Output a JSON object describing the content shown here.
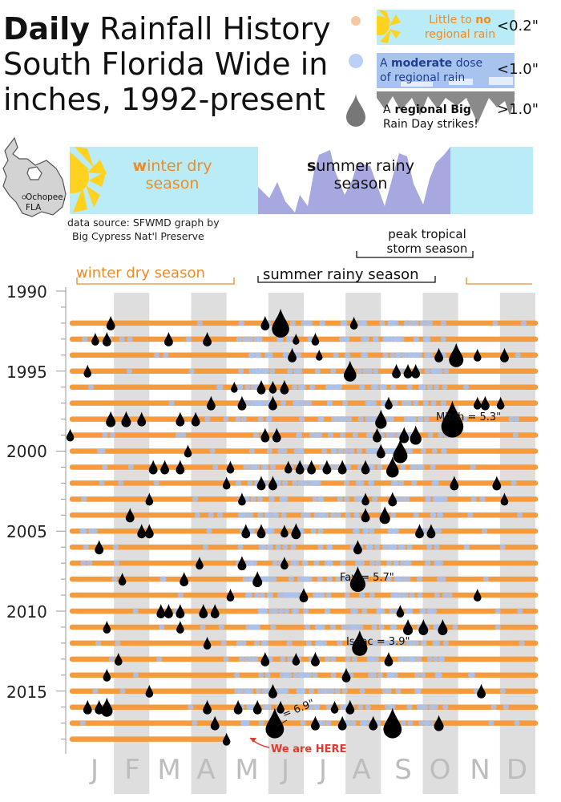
{
  "title": {
    "bold": "Daily",
    "rest": " Rainfall History South Florida Wide in inches, 1992-present"
  },
  "legend": [
    {
      "pre": "Little to ",
      "bold": "no",
      "post": " regional rain",
      "threshold": "<0.2\"",
      "color": "#f7c8a0",
      "text_color": "#f08a24"
    },
    {
      "pre": "A ",
      "bold": "moderate",
      "post": " dose of regional rain",
      "threshold": "<1.0\"",
      "color": "#bcd0f5",
      "text_color": "#1f3f8f"
    },
    {
      "pre": "A",
      "bold": " regional Big",
      "post": " Rain Day strikes!",
      "threshold": ">1.0\"",
      "color": "#777777",
      "text_color": "#111"
    }
  ],
  "map": {
    "label": "Ochopee, FLA"
  },
  "season_banner": {
    "winter_bold": "w",
    "winter_rest": "inter dry season",
    "summer_bold": "s",
    "summer_rest": "ummer rainy season"
  },
  "source": {
    "line1": "data source: SFWMD  graph by",
    "line2": "Big Cypress Nat'l Preserve"
  },
  "chart_data": {
    "type": "scatter",
    "title": "Daily Rainfall History South Florida Wide in inches, 1992-present",
    "x_tick_labels": [
      "J",
      "F",
      "M",
      "A",
      "M",
      "J",
      "J",
      "A",
      "S",
      "O",
      "N",
      "D"
    ],
    "y_tick_labels": [
      "1990",
      "1995",
      "2000",
      "2005",
      "2010",
      "2015"
    ],
    "y_range": [
      1990,
      2018.5
    ],
    "shaded_months": [
      "F",
      "A",
      "J",
      "A",
      "O",
      "D"
    ],
    "colors": {
      "dry": "#f59b3d",
      "moderate": "#a9c3ef",
      "big": "#000000",
      "grid_band": "#dedede"
    },
    "season_brackets": [
      {
        "label": "winter dry season",
        "color": "#f08a24"
      },
      {
        "label": "summer rainy season",
        "color": "#111111"
      },
      {
        "label": "peak tropical storm season",
        "color": "#111111"
      }
    ],
    "annotations": [
      {
        "text": "Mitch = 5.3\"",
        "year": 1998,
        "month": 10.85
      },
      {
        "text": "Fay = 5.7\"",
        "year": 2008,
        "month": 8.4
      },
      {
        "text": "Isaac = 3.9\"",
        "year": 2012,
        "month": 8.45
      },
      {
        "text": "= 6.9\"",
        "year": 2017,
        "month": 6.25
      },
      {
        "text": "We are HERE",
        "year": 2018,
        "month": 5.0
      }
    ],
    "series": [
      {
        "name": "Big Rain Day (>1.0\")",
        "points": [
          {
            "year": 1992,
            "month": 2.0,
            "size": 0.9
          },
          {
            "year": 1992,
            "month": 6.0,
            "size": 0.9
          },
          {
            "year": 1992,
            "month": 6.4,
            "size": 1.8
          },
          {
            "year": 1992,
            "month": 8.3,
            "size": 0.8
          },
          {
            "year": 1993,
            "month": 1.6,
            "size": 0.8
          },
          {
            "year": 1993,
            "month": 1.9,
            "size": 0.9
          },
          {
            "year": 1993,
            "month": 3.5,
            "size": 0.9
          },
          {
            "year": 1993,
            "month": 4.5,
            "size": 0.9
          },
          {
            "year": 1993,
            "month": 6.8,
            "size": 0.7
          },
          {
            "year": 1993,
            "month": 7.3,
            "size": 0.8
          },
          {
            "year": 1994,
            "month": 6.7,
            "size": 0.9
          },
          {
            "year": 1994,
            "month": 7.4,
            "size": 0.7
          },
          {
            "year": 1994,
            "month": 10.5,
            "size": 0.9
          },
          {
            "year": 1994,
            "month": 10.95,
            "size": 1.5
          },
          {
            "year": 1994,
            "month": 11.5,
            "size": 0.8
          },
          {
            "year": 1994,
            "month": 12.2,
            "size": 0.9
          },
          {
            "year": 1995,
            "month": 1.4,
            "size": 0.8
          },
          {
            "year": 1995,
            "month": 8.2,
            "size": 1.3
          },
          {
            "year": 1995,
            "month": 9.4,
            "size": 0.9
          },
          {
            "year": 1995,
            "month": 9.7,
            "size": 0.9
          },
          {
            "year": 1995,
            "month": 9.9,
            "size": 0.9
          },
          {
            "year": 1996,
            "month": 5.2,
            "size": 0.7
          },
          {
            "year": 1996,
            "month": 5.9,
            "size": 0.9
          },
          {
            "year": 1996,
            "month": 6.2,
            "size": 0.8
          },
          {
            "year": 1996,
            "month": 6.5,
            "size": 0.9
          },
          {
            "year": 1997,
            "month": 4.6,
            "size": 0.9
          },
          {
            "year": 1997,
            "month": 5.4,
            "size": 0.9
          },
          {
            "year": 1997,
            "month": 6.2,
            "size": 0.9
          },
          {
            "year": 1997,
            "month": 9.2,
            "size": 0.8
          },
          {
            "year": 1997,
            "month": 11.5,
            "size": 0.8
          },
          {
            "year": 1997,
            "month": 11.7,
            "size": 0.9
          },
          {
            "year": 1997,
            "month": 12.1,
            "size": 0.8
          },
          {
            "year": 1998,
            "month": 2.0,
            "size": 1.0
          },
          {
            "year": 1998,
            "month": 2.4,
            "size": 1.0
          },
          {
            "year": 1998,
            "month": 2.8,
            "size": 0.9
          },
          {
            "year": 1998,
            "month": 3.8,
            "size": 0.9
          },
          {
            "year": 1998,
            "month": 4.2,
            "size": 0.9
          },
          {
            "year": 1998,
            "month": 9.0,
            "size": 1.2
          },
          {
            "year": 1998,
            "month": 10.85,
            "size": 2.3
          },
          {
            "year": 1999,
            "month": 0.95,
            "size": 0.8
          },
          {
            "year": 1999,
            "month": 6.0,
            "size": 0.9
          },
          {
            "year": 1999,
            "month": 6.3,
            "size": 0.9
          },
          {
            "year": 1999,
            "month": 8.9,
            "size": 0.9
          },
          {
            "year": 1999,
            "month": 9.6,
            "size": 1.0
          },
          {
            "year": 1999,
            "month": 9.9,
            "size": 1.2
          },
          {
            "year": 2000,
            "month": 4.0,
            "size": 0.8
          },
          {
            "year": 2000,
            "month": 9.0,
            "size": 0.9
          },
          {
            "year": 2000,
            "month": 9.5,
            "size": 1.5
          },
          {
            "year": 2001,
            "month": 3.1,
            "size": 0.9
          },
          {
            "year": 2001,
            "month": 3.4,
            "size": 0.9
          },
          {
            "year": 2001,
            "month": 3.8,
            "size": 0.9
          },
          {
            "year": 2001,
            "month": 5.1,
            "size": 0.8
          },
          {
            "year": 2001,
            "month": 6.6,
            "size": 0.8
          },
          {
            "year": 2001,
            "month": 6.9,
            "size": 0.9
          },
          {
            "year": 2001,
            "month": 7.2,
            "size": 0.9
          },
          {
            "year": 2001,
            "month": 7.6,
            "size": 0.9
          },
          {
            "year": 2001,
            "month": 8.0,
            "size": 0.9
          },
          {
            "year": 2001,
            "month": 8.6,
            "size": 0.9
          },
          {
            "year": 2001,
            "month": 9.3,
            "size": 1.3
          },
          {
            "year": 2002,
            "month": 5.0,
            "size": 0.8
          },
          {
            "year": 2002,
            "month": 5.9,
            "size": 0.9
          },
          {
            "year": 2002,
            "month": 6.2,
            "size": 0.9
          },
          {
            "year": 2002,
            "month": 10.9,
            "size": 0.9
          },
          {
            "year": 2002,
            "month": 12.0,
            "size": 0.9
          },
          {
            "year": 2003,
            "month": 3.0,
            "size": 0.8
          },
          {
            "year": 2003,
            "month": 5.4,
            "size": 0.8
          },
          {
            "year": 2003,
            "month": 8.6,
            "size": 0.8
          },
          {
            "year": 2003,
            "month": 9.3,
            "size": 0.9
          },
          {
            "year": 2003,
            "month": 12.2,
            "size": 0.8
          },
          {
            "year": 2004,
            "month": 2.5,
            "size": 0.9
          },
          {
            "year": 2004,
            "month": 8.6,
            "size": 0.9
          },
          {
            "year": 2004,
            "month": 9.1,
            "size": 1.1
          },
          {
            "year": 2005,
            "month": 2.8,
            "size": 0.9
          },
          {
            "year": 2005,
            "month": 3.0,
            "size": 0.9
          },
          {
            "year": 2005,
            "month": 5.5,
            "size": 0.9
          },
          {
            "year": 2005,
            "month": 5.9,
            "size": 0.9
          },
          {
            "year": 2005,
            "month": 6.5,
            "size": 0.8
          },
          {
            "year": 2005,
            "month": 6.8,
            "size": 1.0
          },
          {
            "year": 2005,
            "month": 10.0,
            "size": 0.9
          },
          {
            "year": 2005,
            "month": 10.3,
            "size": 0.9
          },
          {
            "year": 2006,
            "month": 1.7,
            "size": 0.9
          },
          {
            "year": 2006,
            "month": 8.4,
            "size": 0.9
          },
          {
            "year": 2007,
            "month": 4.3,
            "size": 0.8
          },
          {
            "year": 2007,
            "month": 5.4,
            "size": 0.9
          },
          {
            "year": 2007,
            "month": 6.5,
            "size": 0.8
          },
          {
            "year": 2008,
            "month": 2.3,
            "size": 0.8
          },
          {
            "year": 2008,
            "month": 3.9,
            "size": 0.9
          },
          {
            "year": 2008,
            "month": 5.8,
            "size": 1.0
          },
          {
            "year": 2008,
            "month": 8.4,
            "size": 1.6
          },
          {
            "year": 2009,
            "month": 5.1,
            "size": 0.8
          },
          {
            "year": 2009,
            "month": 7.0,
            "size": 0.9
          },
          {
            "year": 2009,
            "month": 11.5,
            "size": 0.8
          },
          {
            "year": 2010,
            "month": 3.3,
            "size": 0.9
          },
          {
            "year": 2010,
            "month": 3.5,
            "size": 0.9
          },
          {
            "year": 2010,
            "month": 3.8,
            "size": 0.9
          },
          {
            "year": 2010,
            "month": 4.4,
            "size": 0.9
          },
          {
            "year": 2010,
            "month": 4.7,
            "size": 0.9
          },
          {
            "year": 2010,
            "month": 9.5,
            "size": 0.8
          },
          {
            "year": 2011,
            "month": 1.9,
            "size": 0.8
          },
          {
            "year": 2011,
            "month": 3.8,
            "size": 0.8
          },
          {
            "year": 2011,
            "month": 9.7,
            "size": 1.0
          },
          {
            "year": 2011,
            "month": 10.1,
            "size": 1.0
          },
          {
            "year": 2011,
            "month": 10.6,
            "size": 1.0
          },
          {
            "year": 2012,
            "month": 4.5,
            "size": 0.8
          },
          {
            "year": 2012,
            "month": 8.45,
            "size": 1.6
          },
          {
            "year": 2013,
            "month": 2.2,
            "size": 0.8
          },
          {
            "year": 2013,
            "month": 6.0,
            "size": 0.9
          },
          {
            "year": 2013,
            "month": 6.8,
            "size": 0.8
          },
          {
            "year": 2013,
            "month": 7.3,
            "size": 0.9
          },
          {
            "year": 2013,
            "month": 9.2,
            "size": 0.9
          },
          {
            "year": 2014,
            "month": 1.9,
            "size": 0.8
          },
          {
            "year": 2014,
            "month": 8.1,
            "size": 0.9
          },
          {
            "year": 2015,
            "month": 3.0,
            "size": 0.8
          },
          {
            "year": 2015,
            "month": 6.2,
            "size": 0.9
          },
          {
            "year": 2015,
            "month": 11.6,
            "size": 0.9
          },
          {
            "year": 2016,
            "month": 1.4,
            "size": 0.9
          },
          {
            "year": 2016,
            "month": 1.7,
            "size": 0.9
          },
          {
            "year": 2016,
            "month": 1.9,
            "size": 1.2
          },
          {
            "year": 2016,
            "month": 4.5,
            "size": 0.9
          },
          {
            "year": 2016,
            "month": 5.3,
            "size": 0.9
          },
          {
            "year": 2016,
            "month": 5.8,
            "size": 0.9
          },
          {
            "year": 2016,
            "month": 6.4,
            "size": 0.8
          },
          {
            "year": 2016,
            "month": 7.8,
            "size": 0.8
          },
          {
            "year": 2016,
            "month": 8.2,
            "size": 0.9
          },
          {
            "year": 2017,
            "month": 4.7,
            "size": 0.9
          },
          {
            "year": 2017,
            "month": 6.25,
            "size": 1.9
          },
          {
            "year": 2017,
            "month": 7.3,
            "size": 0.9
          },
          {
            "year": 2017,
            "month": 8.0,
            "size": 0.9
          },
          {
            "year": 2017,
            "month": 8.8,
            "size": 0.9
          },
          {
            "year": 2017,
            "month": 9.3,
            "size": 1.9
          },
          {
            "year": 2017,
            "month": 10.5,
            "size": 1.0
          },
          {
            "year": 2018,
            "month": 5.0,
            "size": 0.8
          }
        ]
      }
    ]
  }
}
